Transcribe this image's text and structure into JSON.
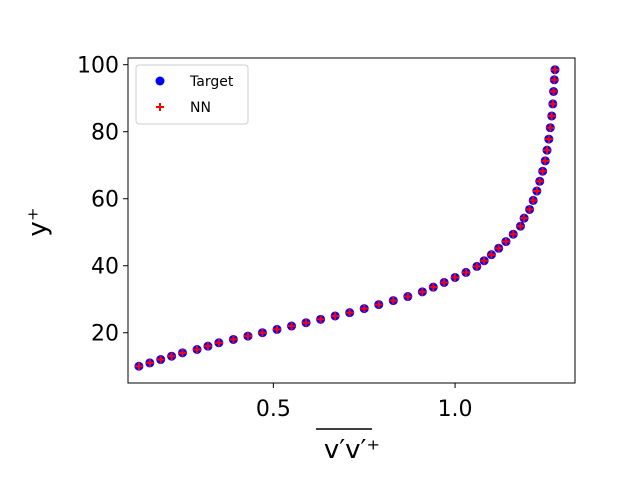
{
  "chart_data": {
    "type": "scatter",
    "title": "",
    "xlabel": "v′v′⁺",
    "ylabel": "y⁺",
    "xlim": [
      0.1,
      1.33
    ],
    "ylim": [
      5,
      102
    ],
    "x_ticks": [
      0.5,
      1.0
    ],
    "x_tick_labels": [
      "0.5",
      "1.0"
    ],
    "y_ticks": [
      20,
      40,
      60,
      80,
      100
    ],
    "y_tick_labels": [
      "20",
      "40",
      "60",
      "80",
      "100"
    ],
    "grid": false,
    "legend_position": "top-left",
    "series": [
      {
        "name": "Target",
        "marker": "circle",
        "color": "#0000ff",
        "points": [
          [
            0.13,
            10
          ],
          [
            0.16,
            11
          ],
          [
            0.19,
            12
          ],
          [
            0.22,
            13
          ],
          [
            0.25,
            14
          ],
          [
            0.29,
            15
          ],
          [
            0.32,
            16
          ],
          [
            0.35,
            17
          ],
          [
            0.39,
            18
          ],
          [
            0.43,
            19
          ],
          [
            0.47,
            20
          ],
          [
            0.51,
            21
          ],
          [
            0.55,
            22
          ],
          [
            0.59,
            23
          ],
          [
            0.63,
            24
          ],
          [
            0.67,
            25
          ],
          [
            0.71,
            26
          ],
          [
            0.75,
            27.2
          ],
          [
            0.79,
            28.4
          ],
          [
            0.83,
            29.6
          ],
          [
            0.87,
            30.8
          ],
          [
            0.91,
            32.2
          ],
          [
            0.94,
            33.6
          ],
          [
            0.97,
            35
          ],
          [
            1.0,
            36.5
          ],
          [
            1.03,
            38
          ],
          [
            1.06,
            39.8
          ],
          [
            1.08,
            41.5
          ],
          [
            1.1,
            43.3
          ],
          [
            1.12,
            45.2
          ],
          [
            1.14,
            47.2
          ],
          [
            1.16,
            49.4
          ],
          [
            1.18,
            51.8
          ],
          [
            1.19,
            54.2
          ],
          [
            1.205,
            56.8
          ],
          [
            1.215,
            59.5
          ],
          [
            1.225,
            62.3
          ],
          [
            1.233,
            65.2
          ],
          [
            1.241,
            68.2
          ],
          [
            1.248,
            71.3
          ],
          [
            1.253,
            74.5
          ],
          [
            1.258,
            77.8
          ],
          [
            1.262,
            81.2
          ],
          [
            1.266,
            84.7
          ],
          [
            1.269,
            88.3
          ],
          [
            1.271,
            92
          ],
          [
            1.273,
            95.5
          ],
          [
            1.275,
            98.5
          ]
        ]
      },
      {
        "name": "NN",
        "marker": "plus",
        "color": "#ff0000",
        "points": [
          [
            0.13,
            10
          ],
          [
            0.16,
            11
          ],
          [
            0.19,
            12
          ],
          [
            0.22,
            13
          ],
          [
            0.25,
            14
          ],
          [
            0.29,
            15
          ],
          [
            0.32,
            16
          ],
          [
            0.35,
            17
          ],
          [
            0.39,
            18
          ],
          [
            0.43,
            19
          ],
          [
            0.47,
            20
          ],
          [
            0.51,
            21
          ],
          [
            0.55,
            22
          ],
          [
            0.59,
            23
          ],
          [
            0.63,
            24
          ],
          [
            0.67,
            25
          ],
          [
            0.71,
            26
          ],
          [
            0.75,
            27.2
          ],
          [
            0.79,
            28.4
          ],
          [
            0.83,
            29.6
          ],
          [
            0.87,
            30.8
          ],
          [
            0.91,
            32.2
          ],
          [
            0.94,
            33.6
          ],
          [
            0.97,
            35
          ],
          [
            1.0,
            36.5
          ],
          [
            1.03,
            38
          ],
          [
            1.06,
            39.8
          ],
          [
            1.08,
            41.5
          ],
          [
            1.1,
            43.3
          ],
          [
            1.12,
            45.2
          ],
          [
            1.14,
            47.2
          ],
          [
            1.16,
            49.4
          ],
          [
            1.18,
            51.8
          ],
          [
            1.19,
            54.2
          ],
          [
            1.205,
            56.8
          ],
          [
            1.215,
            59.5
          ],
          [
            1.225,
            62.3
          ],
          [
            1.233,
            65.2
          ],
          [
            1.241,
            68.2
          ],
          [
            1.248,
            71.3
          ],
          [
            1.253,
            74.5
          ],
          [
            1.258,
            77.8
          ],
          [
            1.262,
            81.2
          ],
          [
            1.266,
            84.7
          ],
          [
            1.269,
            88.3
          ],
          [
            1.271,
            92
          ],
          [
            1.273,
            95.5
          ],
          [
            1.275,
            98.5
          ]
        ]
      }
    ]
  }
}
